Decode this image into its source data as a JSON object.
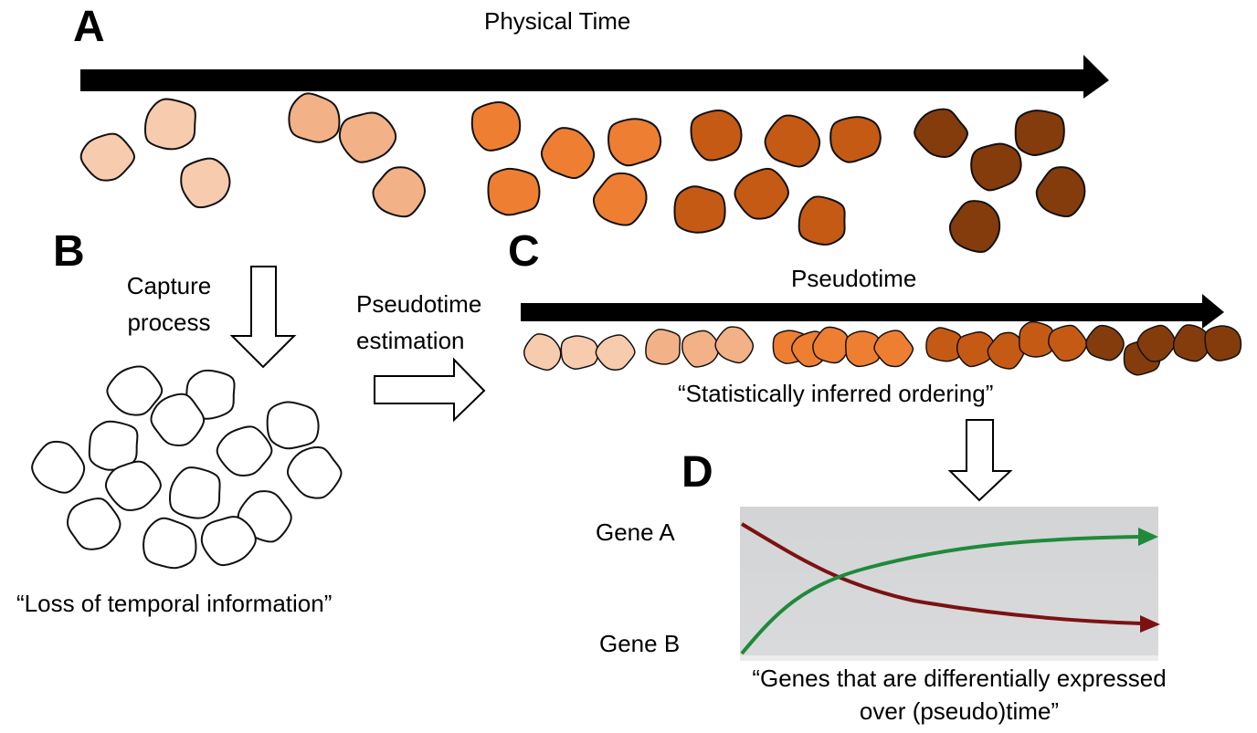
{
  "panels": {
    "a": "A",
    "b": "B",
    "c": "C",
    "d": "D"
  },
  "labels": {
    "physical_time": "Physical Time",
    "capture_line1": "Capture",
    "capture_line2": "process",
    "pseudotime_est_line1": "Pseudotime",
    "pseudotime_est_line2": "estimation",
    "pseudotime": "Pseudotime",
    "statistically_inferred": "“Statistically inferred ordering”",
    "loss_temporal": "“Loss of temporal information”",
    "gene_a": "Gene A",
    "gene_b": "Gene B",
    "genes_diff_line1": "“Genes that are differentially expressed",
    "genes_diff_line2": "over (pseudo)time”"
  },
  "colors": {
    "stage1": "#f6cbae",
    "stage2": "#f2b186",
    "stage3": "#ee7f32",
    "stage4": "#c55a15",
    "stage5": "#843c0c",
    "gene_a_line": "#1f8a3a",
    "gene_b_line": "#7b1212",
    "plot_background": "#d5d6d8"
  }
}
